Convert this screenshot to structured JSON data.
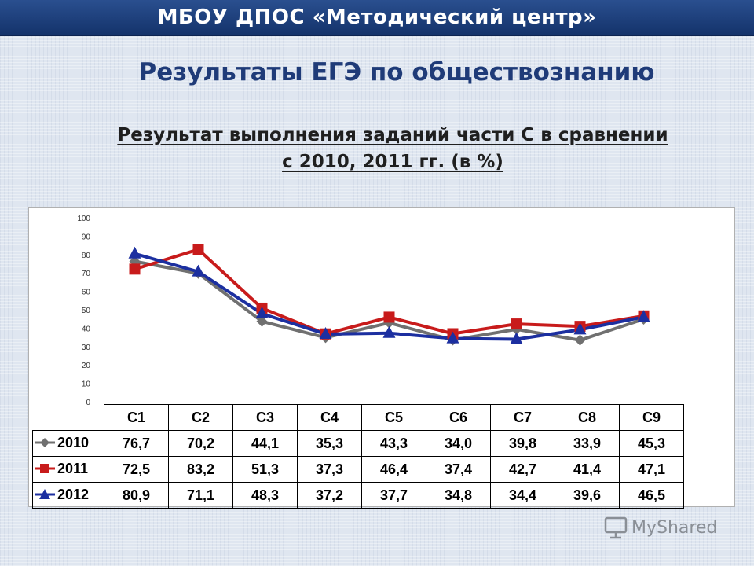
{
  "banner": {
    "title": "МБОУ ДПОС «Методический центр»"
  },
  "slide": {
    "title": "Результаты  ЕГЭ по обществознанию",
    "subtitle_line1": "Результат выполнения заданий части С в сравнении",
    "subtitle_line2": "с 2010, 2011 гг. (в %)"
  },
  "chart_data": {
    "type": "line",
    "categories": [
      "C1",
      "C2",
      "C3",
      "C4",
      "C5",
      "C6",
      "C7",
      "C8",
      "C9"
    ],
    "series": [
      {
        "name": "2010",
        "values": [
          76.7,
          70.2,
          44.1,
          35.3,
          43.3,
          34.0,
          39.8,
          33.9,
          45.3
        ],
        "color": "#707070",
        "marker": "diamond"
      },
      {
        "name": "2011",
        "values": [
          72.5,
          83.2,
          51.3,
          37.3,
          46.4,
          37.4,
          42.7,
          41.4,
          47.1
        ],
        "color": "#c81b1b",
        "marker": "square"
      },
      {
        "name": "2012",
        "values": [
          80.9,
          71.1,
          48.3,
          37.2,
          37.7,
          34.8,
          34.4,
          39.6,
          46.5
        ],
        "color": "#1c2fa0",
        "marker": "triangle"
      }
    ],
    "table_values": [
      [
        "76,7",
        "70,2",
        "44,1",
        "35,3",
        "43,3",
        "34,0",
        "39,8",
        "33,9",
        "45,3"
      ],
      [
        "72,5",
        "83,2",
        "51,3",
        "37,3",
        "46,4",
        "37,4",
        "42,7",
        "41,4",
        "47,1"
      ],
      [
        "80,9",
        "71,1",
        "48,3",
        "37,2",
        "37,7",
        "34,8",
        "34,4",
        "39,6",
        "46,5"
      ]
    ],
    "y_ticks": [
      "0",
      "10",
      "20",
      "30",
      "40",
      "50",
      "60",
      "70",
      "80",
      "90",
      "100"
    ],
    "ylim": [
      0,
      100
    ],
    "grid": false,
    "legend": "data-table"
  },
  "watermark": {
    "text": "MyShared",
    "icon": "presentation-board-icon"
  }
}
